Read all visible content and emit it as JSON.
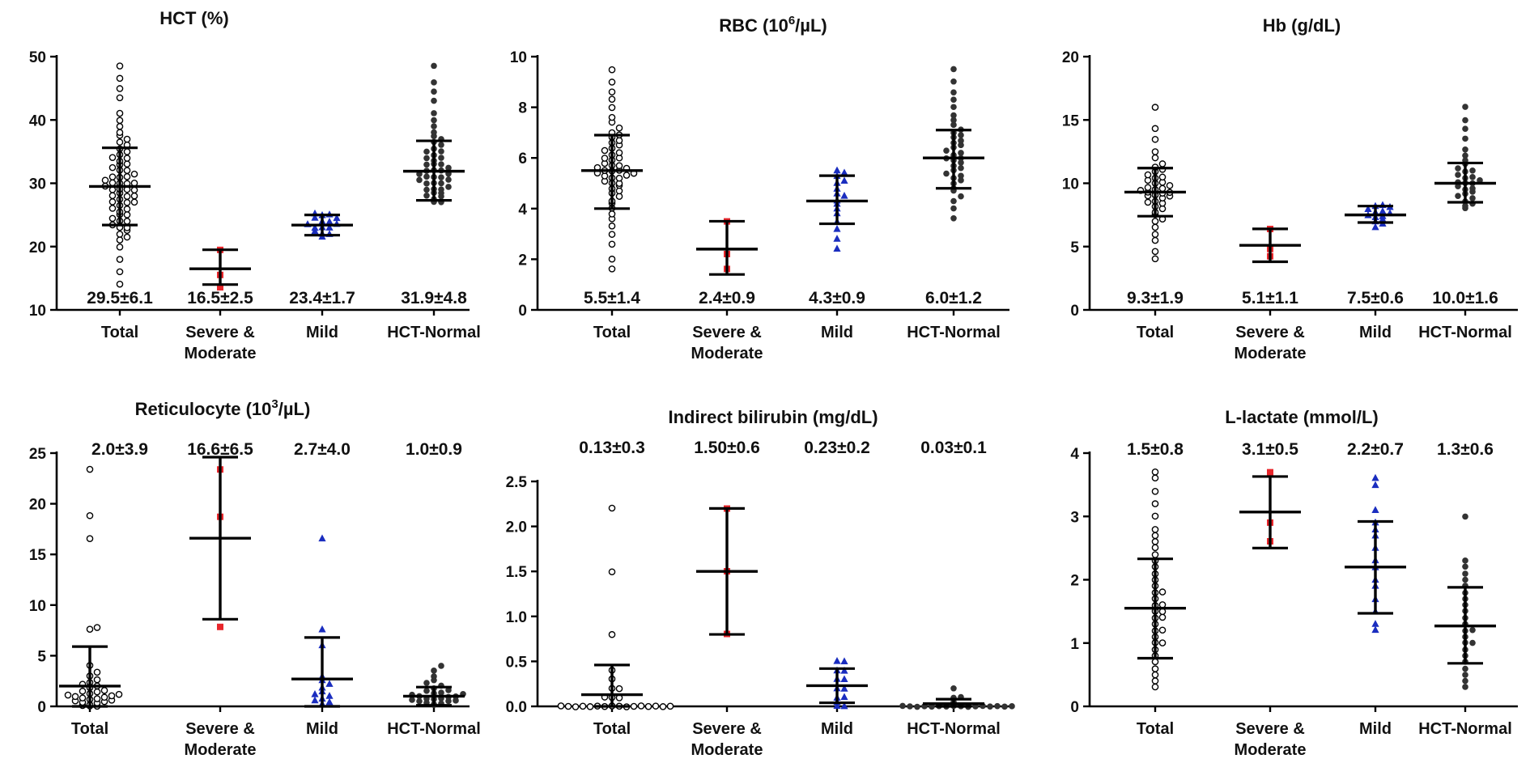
{
  "chart_data": [
    {
      "type": "scatter",
      "title": "HCT (%)",
      "title_sup": "",
      "title_after": "",
      "ylim": [
        10,
        50
      ],
      "yticks": [
        "10",
        "20",
        "30",
        "40",
        "50"
      ],
      "stats_position": "bottom",
      "groups": [
        {
          "label": "Total",
          "label2": "",
          "stat": "29.5±6.1",
          "mean": 29.5,
          "sd_lo": 23.4,
          "sd_hi": 35.6,
          "marker": "open-circle",
          "color": "#000000",
          "values": [
            14,
            16,
            18,
            20,
            21,
            21.5,
            22,
            22.5,
            23,
            23,
            23.5,
            24,
            24,
            24.5,
            25,
            25,
            25.5,
            26,
            26,
            26.5,
            27,
            27,
            27,
            27.5,
            28,
            28,
            28,
            28.5,
            29,
            29,
            29,
            29,
            29.5,
            30,
            30,
            30,
            30,
            30.5,
            31,
            31,
            31,
            31.5,
            32,
            32,
            32.5,
            33,
            33,
            33.5,
            34,
            34,
            34.5,
            35,
            35.5,
            36,
            36.5,
            37,
            37.5,
            38,
            39,
            40,
            41,
            43.5,
            45,
            46.5,
            48.5
          ]
        },
        {
          "label": "Severe &",
          "label2": "Moderate",
          "stat": "16.5±2.5",
          "mean": 16.5,
          "sd_lo": 14.0,
          "sd_hi": 19.5,
          "marker": "filled-square",
          "color": "#e8262b",
          "values": [
            13.5,
            15.5,
            19.5
          ]
        },
        {
          "label": "Mild",
          "label2": "",
          "stat": "23.4±1.7",
          "mean": 23.4,
          "sd_lo": 21.8,
          "sd_hi": 25.0,
          "marker": "filled-triangle",
          "color": "#1a2dbf",
          "values": [
            21.5,
            22,
            22,
            22.5,
            23,
            23,
            23,
            23.5,
            23.5,
            24,
            24,
            24.5,
            24.5,
            25,
            25,
            25.2
          ]
        },
        {
          "label": "HCT-Normal",
          "label2": "",
          "stat": "31.9±4.8",
          "mean": 31.9,
          "sd_lo": 27.3,
          "sd_hi": 36.7,
          "marker": "filled-circle",
          "color": "#333333",
          "values": [
            27,
            27,
            27.5,
            28,
            28,
            28.5,
            28.5,
            29,
            29,
            29,
            29.5,
            30,
            30,
            30,
            30.5,
            30.5,
            31,
            31,
            31,
            31.5,
            31.5,
            32,
            32,
            32,
            32.5,
            33,
            33,
            33,
            33.5,
            34,
            34,
            34.5,
            35,
            35,
            35.5,
            36,
            36.5,
            37,
            37.5,
            38,
            39,
            40,
            41,
            43,
            44.5,
            46,
            48.5
          ]
        }
      ]
    },
    {
      "type": "scatter",
      "title": "RBC (10",
      "title_sup": "6",
      "title_after": "/µL)",
      "ylim": [
        0,
        10
      ],
      "yticks": [
        "0",
        "2",
        "4",
        "6",
        "8",
        "10"
      ],
      "stats_position": "bottom",
      "groups": [
        {
          "label": "Total",
          "label2": "",
          "stat": "5.5±1.4",
          "mean": 5.5,
          "sd_lo": 4.0,
          "sd_hi": 6.9,
          "marker": "open-circle",
          "color": "#000000",
          "values": [
            1.6,
            2.0,
            2.6,
            3.0,
            3.3,
            3.6,
            3.8,
            4.0,
            4.2,
            4.3,
            4.5,
            4.6,
            4.7,
            4.8,
            4.9,
            5.0,
            5.0,
            5.1,
            5.2,
            5.2,
            5.3,
            5.3,
            5.4,
            5.4,
            5.5,
            5.5,
            5.5,
            5.6,
            5.6,
            5.7,
            5.7,
            5.8,
            5.9,
            6.0,
            6.0,
            6.1,
            6.2,
            6.3,
            6.4,
            6.5,
            6.6,
            6.7,
            6.8,
            6.9,
            7.0,
            7.2,
            7.4,
            7.6,
            8.0,
            8.3,
            8.6,
            9.0,
            9.5
          ]
        },
        {
          "label": "Severe &",
          "label2": "Moderate",
          "stat": "2.4±0.9",
          "mean": 2.4,
          "sd_lo": 1.4,
          "sd_hi": 3.5,
          "marker": "filled-square",
          "color": "#e8262b",
          "values": [
            1.6,
            2.2,
            3.5
          ]
        },
        {
          "label": "Mild",
          "label2": "",
          "stat": "4.3±0.9",
          "mean": 4.3,
          "sd_lo": 3.4,
          "sd_hi": 5.3,
          "marker": "filled-triangle",
          "color": "#1a2dbf",
          "values": [
            2.4,
            2.8,
            3.2,
            3.5,
            3.8,
            4.0,
            4.2,
            4.3,
            4.5,
            4.6,
            4.8,
            5.0,
            5.1,
            5.3,
            5.4,
            5.5
          ]
        },
        {
          "label": "HCT-Normal",
          "label2": "",
          "stat": "6.0±1.2",
          "mean": 6.0,
          "sd_lo": 4.8,
          "sd_hi": 7.1,
          "marker": "filled-circle",
          "color": "#333333",
          "values": [
            3.6,
            4.0,
            4.3,
            4.5,
            4.7,
            4.8,
            5.0,
            5.1,
            5.2,
            5.3,
            5.4,
            5.5,
            5.6,
            5.7,
            5.8,
            5.9,
            6.0,
            6.0,
            6.1,
            6.2,
            6.3,
            6.4,
            6.5,
            6.6,
            6.7,
            6.8,
            6.9,
            7.0,
            7.1,
            7.3,
            7.5,
            7.7,
            8.0,
            8.3,
            8.6,
            9.0,
            9.5
          ]
        }
      ]
    },
    {
      "type": "scatter",
      "title": "Hb (g/dL)",
      "title_sup": "",
      "title_after": "",
      "ylim": [
        0,
        20
      ],
      "yticks": [
        "0",
        "5",
        "10",
        "15",
        "20"
      ],
      "stats_position": "bottom",
      "groups": [
        {
          "label": "Total",
          "label2": "",
          "stat": "9.3±1.9",
          "mean": 9.3,
          "sd_lo": 7.4,
          "sd_hi": 11.2,
          "marker": "open-circle",
          "color": "#000000",
          "values": [
            4.0,
            4.6,
            5.5,
            6.0,
            6.5,
            7.0,
            7.2,
            7.5,
            7.7,
            8.0,
            8.2,
            8.4,
            8.5,
            8.6,
            8.8,
            9.0,
            9.0,
            9.1,
            9.2,
            9.3,
            9.3,
            9.4,
            9.5,
            9.6,
            9.7,
            9.8,
            10.0,
            10.1,
            10.2,
            10.4,
            10.5,
            10.7,
            10.9,
            11.1,
            11.3,
            11.5,
            12.0,
            12.5,
            13.5,
            14.3,
            16.0
          ]
        },
        {
          "label": "Severe &",
          "label2": "Moderate",
          "stat": "5.1±1.1",
          "mean": 5.1,
          "sd_lo": 3.8,
          "sd_hi": 6.4,
          "marker": "filled-square",
          "color": "#e8262b",
          "values": [
            4.2,
            4.8,
            6.4
          ]
        },
        {
          "label": "Mild",
          "label2": "",
          "stat": "7.5±0.6",
          "mean": 7.5,
          "sd_lo": 6.9,
          "sd_hi": 8.2,
          "marker": "filled-triangle",
          "color": "#1a2dbf",
          "values": [
            6.5,
            6.8,
            7.0,
            7.2,
            7.3,
            7.4,
            7.5,
            7.6,
            7.7,
            7.8,
            8.0,
            8.1,
            8.2,
            8.3
          ]
        },
        {
          "label": "HCT-Normal",
          "label2": "",
          "stat": "10.0±1.6",
          "mean": 10.0,
          "sd_lo": 8.5,
          "sd_hi": 11.6,
          "marker": "filled-circle",
          "color": "#333333",
          "values": [
            8.0,
            8.2,
            8.4,
            8.6,
            8.8,
            9.0,
            9.2,
            9.3,
            9.5,
            9.6,
            9.8,
            10.0,
            10.0,
            10.1,
            10.2,
            10.4,
            10.5,
            10.7,
            10.9,
            11.0,
            11.2,
            11.5,
            11.8,
            12.2,
            12.7,
            13.5,
            14.3,
            15.0,
            16.0
          ]
        }
      ]
    },
    {
      "type": "scatter",
      "title": "Reticulocyte (10",
      "title_sup": "3",
      "title_after": "/µL)",
      "ylim": [
        0,
        25
      ],
      "yticks": [
        "0",
        "5",
        "10",
        "15",
        "20",
        "25"
      ],
      "stats_position": "top",
      "groups": [
        {
          "label": "Total",
          "label2": "",
          "stat": "2.0±3.9",
          "mean": 2.0,
          "sd_lo": 0.0,
          "sd_hi": 5.9,
          "marker": "open-circle",
          "color": "#000000",
          "values": [
            0,
            0,
            0.1,
            0.2,
            0.3,
            0.4,
            0.5,
            0.5,
            0.6,
            0.7,
            0.8,
            0.8,
            0.9,
            1.0,
            1.0,
            1.1,
            1.2,
            1.3,
            1.4,
            1.5,
            1.6,
            1.8,
            2.0,
            2.2,
            2.4,
            2.6,
            3.0,
            3.4,
            4.0,
            7.6,
            7.8,
            16.6,
            18.8,
            23.4
          ]
        },
        {
          "label": "Severe &",
          "label2": "Moderate",
          "stat": "16.6±6.5",
          "mean": 16.6,
          "sd_lo": 8.6,
          "sd_hi": 24.6,
          "marker": "filled-square",
          "color": "#e8262b",
          "values": [
            7.8,
            18.7,
            23.4
          ]
        },
        {
          "label": "Mild",
          "label2": "",
          "stat": "2.7±4.0",
          "mean": 2.7,
          "sd_lo": 0.0,
          "sd_hi": 6.8,
          "marker": "filled-triangle",
          "color": "#1a2dbf",
          "values": [
            0.2,
            0.4,
            0.6,
            0.8,
            1.0,
            1.2,
            1.5,
            1.8,
            2.2,
            2.6,
            3.0,
            6.0,
            7.6,
            16.6
          ]
        },
        {
          "label": "HCT-Normal",
          "label2": "",
          "stat": "1.0±0.9",
          "mean": 1.0,
          "sd_lo": 0.1,
          "sd_hi": 1.9,
          "marker": "filled-circle",
          "color": "#333333",
          "values": [
            0.1,
            0.2,
            0.3,
            0.4,
            0.5,
            0.5,
            0.6,
            0.6,
            0.7,
            0.8,
            0.8,
            0.9,
            1.0,
            1.0,
            1.1,
            1.2,
            1.3,
            1.4,
            1.5,
            1.6,
            1.8,
            2.0,
            2.3,
            2.6,
            3.0,
            3.5,
            4.0
          ]
        }
      ]
    },
    {
      "type": "scatter",
      "title": "Indirect bilirubin (mg/dL)",
      "title_sup": "",
      "title_after": "",
      "ylim": [
        0,
        2.5
      ],
      "yticks": [
        "0.0",
        "0.5",
        "1.0",
        "1.5",
        "2.0",
        "2.5"
      ],
      "stats_position": "top",
      "groups": [
        {
          "label": "Total",
          "label2": "",
          "stat": "0.13±0.3",
          "mean": 0.13,
          "sd_lo": 0.0,
          "sd_hi": 0.46,
          "marker": "open-circle",
          "color": "#000000",
          "values": [
            0,
            0,
            0,
            0,
            0,
            0,
            0,
            0,
            0,
            0,
            0,
            0,
            0,
            0,
            0,
            0,
            0.1,
            0.1,
            0.1,
            0.2,
            0.2,
            0.3,
            0.4,
            0.8,
            1.5,
            2.2
          ]
        },
        {
          "label": "Severe &",
          "label2": "Moderate",
          "stat": "1.50±0.6",
          "mean": 1.5,
          "sd_lo": 0.8,
          "sd_hi": 2.2,
          "marker": "filled-square",
          "color": "#e8262b",
          "values": [
            0.8,
            1.5,
            2.2
          ]
        },
        {
          "label": "Mild",
          "label2": "",
          "stat": "0.23±0.2",
          "mean": 0.23,
          "sd_lo": 0.04,
          "sd_hi": 0.42,
          "marker": "filled-triangle",
          "color": "#1a2dbf",
          "values": [
            0,
            0,
            0.05,
            0.1,
            0.1,
            0.2,
            0.2,
            0.3,
            0.3,
            0.4,
            0.4,
            0.5,
            0.5
          ]
        },
        {
          "label": "HCT-Normal",
          "label2": "",
          "stat": "0.03±0.1",
          "mean": 0.03,
          "sd_lo": 0.0,
          "sd_hi": 0.08,
          "marker": "filled-circle",
          "color": "#333333",
          "values": [
            0,
            0,
            0,
            0,
            0,
            0,
            0,
            0,
            0,
            0,
            0,
            0,
            0,
            0,
            0,
            0,
            0.05,
            0.1,
            0.1,
            0.2
          ]
        }
      ]
    },
    {
      "type": "scatter",
      "title": "L-lactate (mmol/L)",
      "title_sup": "",
      "title_after": "",
      "ylim": [
        0,
        4
      ],
      "yticks": [
        "0",
        "1",
        "2",
        "3",
        "4"
      ],
      "stats_position": "top",
      "groups": [
        {
          "label": "Total",
          "label2": "",
          "stat": "1.5±0.8",
          "mean": 1.55,
          "sd_lo": 0.76,
          "sd_hi": 2.33,
          "marker": "open-circle",
          "color": "#000000",
          "values": [
            0.3,
            0.4,
            0.5,
            0.6,
            0.7,
            0.8,
            0.9,
            1.0,
            1.0,
            1.1,
            1.2,
            1.2,
            1.3,
            1.4,
            1.4,
            1.5,
            1.5,
            1.6,
            1.6,
            1.7,
            1.8,
            1.8,
            1.9,
            2.0,
            2.1,
            2.2,
            2.3,
            2.4,
            2.5,
            2.6,
            2.7,
            2.8,
            3.0,
            3.2,
            3.4,
            3.6,
            3.7
          ]
        },
        {
          "label": "Severe &",
          "label2": "Moderate",
          "stat": "3.1±0.5",
          "mean": 3.07,
          "sd_lo": 2.5,
          "sd_hi": 3.63,
          "marker": "filled-square",
          "color": "#e8262b",
          "values": [
            2.6,
            2.9,
            3.7
          ]
        },
        {
          "label": "Mild",
          "label2": "",
          "stat": "2.2±0.7",
          "mean": 2.2,
          "sd_lo": 1.47,
          "sd_hi": 2.92,
          "marker": "filled-triangle",
          "color": "#1a2dbf",
          "values": [
            1.2,
            1.3,
            1.5,
            1.7,
            1.9,
            2.0,
            2.2,
            2.3,
            2.5,
            2.7,
            2.8,
            2.9,
            3.1,
            3.5,
            3.6
          ]
        },
        {
          "label": "HCT-Normal",
          "label2": "",
          "stat": "1.3±0.6",
          "mean": 1.27,
          "sd_lo": 0.68,
          "sd_hi": 1.88,
          "marker": "filled-circle",
          "color": "#333333",
          "values": [
            0.3,
            0.4,
            0.5,
            0.6,
            0.7,
            0.8,
            0.9,
            1.0,
            1.0,
            1.1,
            1.2,
            1.2,
            1.3,
            1.4,
            1.5,
            1.6,
            1.7,
            1.8,
            1.9,
            2.0,
            2.1,
            2.2,
            2.3,
            3.0
          ]
        }
      ]
    }
  ]
}
